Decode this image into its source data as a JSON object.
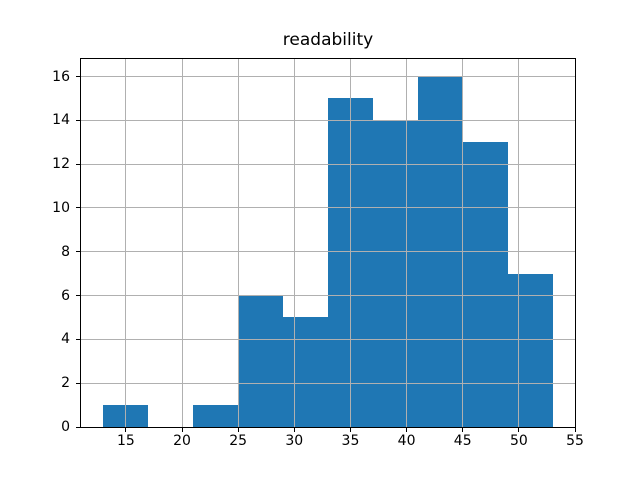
{
  "chart_data": {
    "type": "bar",
    "subtype": "histogram",
    "title": "readability",
    "xlabel": "",
    "ylabel": "",
    "bin_edges": [
      13,
      17,
      21,
      25,
      29,
      33,
      37,
      41,
      45,
      49,
      53
    ],
    "counts": [
      1,
      0,
      1,
      6,
      5,
      15,
      14,
      16,
      13,
      7
    ],
    "xlim": [
      11,
      55
    ],
    "ylim": [
      0,
      16.8
    ],
    "xticks": [
      15,
      20,
      25,
      30,
      35,
      40,
      45,
      50,
      55
    ],
    "yticks": [
      0,
      2,
      4,
      6,
      8,
      10,
      12,
      14,
      16
    ],
    "grid": true,
    "grid_above_bars": true,
    "legend": false,
    "colors": {
      "bar": "#1f77b4",
      "grid": "#b0b0b0",
      "spine": "#000000",
      "text": "#000000",
      "background": "#ffffff"
    }
  }
}
